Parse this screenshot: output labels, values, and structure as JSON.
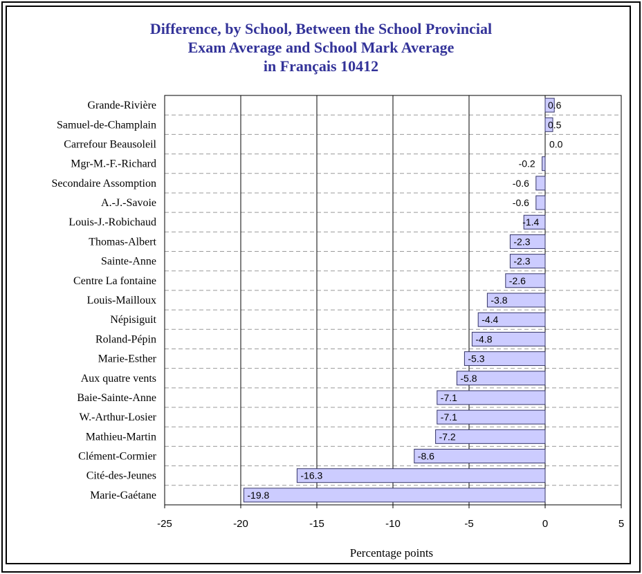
{
  "colors": {
    "title": "#333399",
    "bar_fill": "#ccccff",
    "bar_stroke": "#333366",
    "frame": "#000000"
  },
  "chart_data": {
    "type": "bar",
    "orientation": "horizontal",
    "title_lines": [
      "Difference, by School, Between the School Provincial",
      "Exam Average and School Mark Average",
      "in Français 10412"
    ],
    "xlabel": "Percentage points",
    "ylabel": "",
    "xlim": [
      -25,
      5
    ],
    "xticks": [
      -25,
      -20,
      -15,
      -10,
      -5,
      0,
      5
    ],
    "grid": "vertical major gridlines",
    "legend": "none",
    "categories": [
      "Grande-Rivière",
      "Samuel-de-Champlain",
      "Carrefour Beausoleil",
      "Mgr-M.-F.-Richard",
      "Secondaire Assomption",
      "A.-J.-Savoie",
      "Louis-J.-Robichaud",
      "Thomas-Albert",
      "Sainte-Anne",
      "Centre La fontaine",
      "Louis-Mailloux",
      "Népisiguit",
      "Roland-Pépin",
      "Marie-Esther",
      "Aux quatre vents",
      "Baie-Sainte-Anne",
      "W.-Arthur-Losier",
      "Mathieu-Martin",
      "Clément-Cormier",
      "Cité-des-Jeunes",
      "Marie-Gaétane"
    ],
    "values": [
      0.6,
      0.5,
      0.0,
      -0.2,
      -0.6,
      -0.6,
      -1.4,
      -2.3,
      -2.3,
      -2.6,
      -3.8,
      -4.4,
      -4.8,
      -5.3,
      -5.8,
      -7.1,
      -7.1,
      -7.2,
      -8.6,
      -16.3,
      -19.8
    ],
    "data_labels": [
      "0.6",
      "0.5",
      "0.0",
      "-0.2",
      "-0.6",
      "-0.6",
      "-1.4",
      "-2.3",
      "-2.3",
      "-2.6",
      "-3.8",
      "-4.4",
      "-4.8",
      "-5.3",
      "-5.8",
      "-7.1",
      "-7.1",
      "-7.2",
      "-8.6",
      "-16.3",
      "-19.8"
    ]
  }
}
